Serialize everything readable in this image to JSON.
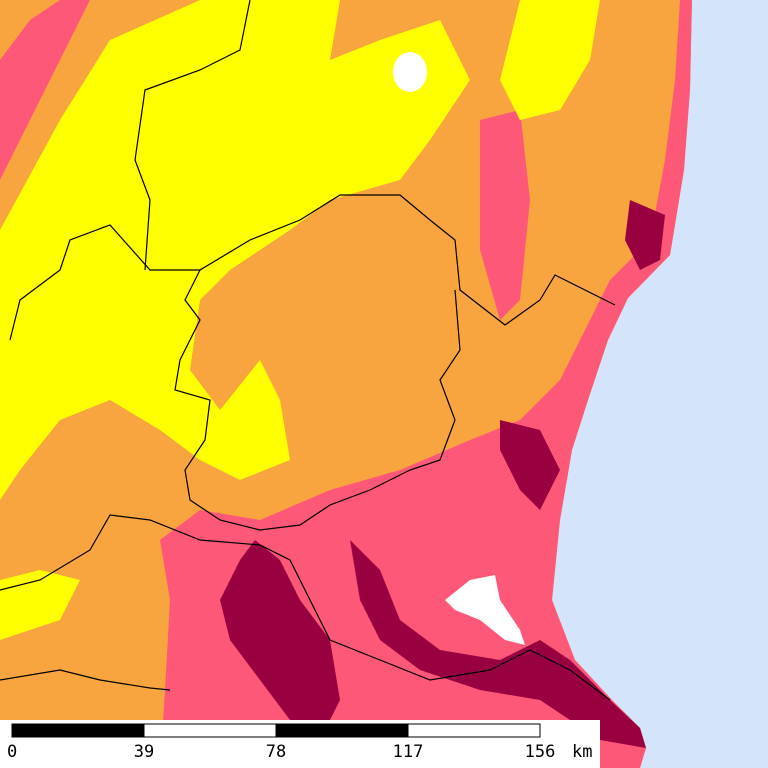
{
  "scale_bar": {
    "ticks": [
      "0",
      "39",
      "78",
      "117",
      "156"
    ],
    "unit": "km"
  }
}
